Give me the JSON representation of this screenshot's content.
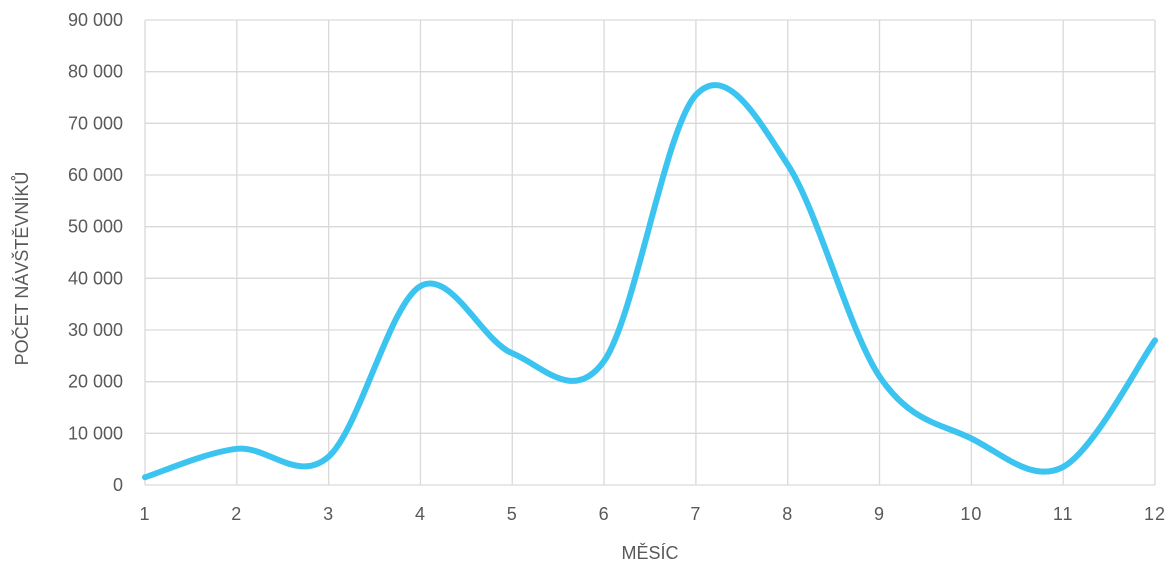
{
  "chart_data": {
    "type": "line",
    "title": "",
    "xlabel": "MĚSÍC",
    "ylabel": "POČET NÁVŠTĚVNÍKŮ",
    "x": [
      1,
      2,
      3,
      4,
      5,
      6,
      7,
      8,
      9,
      10,
      11,
      12
    ],
    "x_tick_labels": [
      "1",
      "2",
      "3",
      "4",
      "5",
      "6",
      "7",
      "8",
      "9",
      "10",
      "11",
      "12"
    ],
    "y_ticks": [
      0,
      10000,
      20000,
      30000,
      40000,
      50000,
      60000,
      70000,
      80000,
      90000
    ],
    "y_tick_labels": [
      "0",
      "10 000",
      "20 000",
      "30 000",
      "40 000",
      "50 000",
      "60 000",
      "70 000",
      "80 000",
      "90 000"
    ],
    "xlim": [
      1,
      12
    ],
    "ylim": [
      0,
      90000
    ],
    "grid": true,
    "smooth": true,
    "legend": "none",
    "series": [
      {
        "values": [
          1500,
          7000,
          5500,
          38500,
          25500,
          24000,
          75500,
          62000,
          21000,
          9000,
          3500,
          28000
        ],
        "color": "#3cc4f0"
      }
    ]
  }
}
